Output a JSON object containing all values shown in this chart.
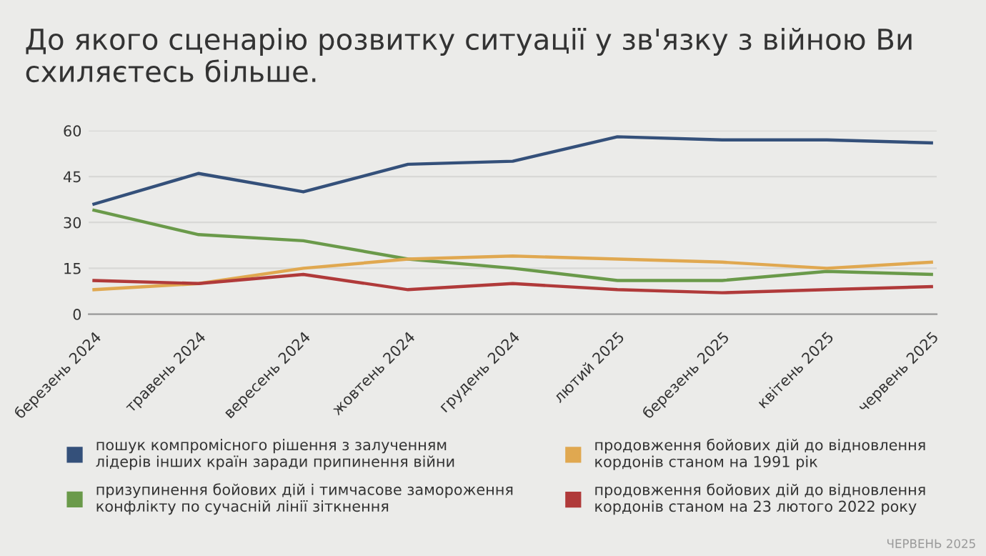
{
  "chart_data": {
    "type": "line",
    "title": "До якого сценарію розвитку ситуації у зв'язку з війною Ви схиляєтесь більше.",
    "categories": [
      "березень 2024",
      "травень 2024",
      "вересень 2024",
      "жовтень 2024",
      "грудень 2024",
      "лютий 2025",
      "березень 2025",
      "квітень 2025",
      "червень 2025"
    ],
    "series": [
      {
        "name": "пошук компромісного рішення з залученням лідерів інших країн заради припинення війни",
        "color": "#34507a",
        "values": [
          36,
          46,
          40,
          49,
          50,
          58,
          57,
          57,
          56
        ]
      },
      {
        "name": "призупинення бойових дій і тимчасове замороження конфлікту по сучасній лінії зіткнення",
        "color": "#6a9a4a",
        "values": [
          34,
          26,
          24,
          18,
          15,
          11,
          11,
          14,
          13
        ]
      },
      {
        "name": "продовження бойових дій до відновлення кордонів станом на 1991 рік",
        "color": "#e0a850",
        "values": [
          8,
          10,
          15,
          18,
          19,
          18,
          17,
          15,
          17
        ]
      },
      {
        "name": "продовження бойових дій до відновлення кордонів станом на 23 лютого 2022 року",
        "color": "#b03a3a",
        "values": [
          11,
          10,
          13,
          8,
          10,
          8,
          7,
          8,
          9
        ]
      }
    ],
    "ylim": [
      0,
      60
    ],
    "yticks": [
      0,
      15,
      30,
      45,
      60
    ],
    "grid": "y",
    "legend": "bottom",
    "marker": "none",
    "line_style": "solid",
    "annotations": [
      "ЧЕРВЕНЬ 2025"
    ]
  }
}
